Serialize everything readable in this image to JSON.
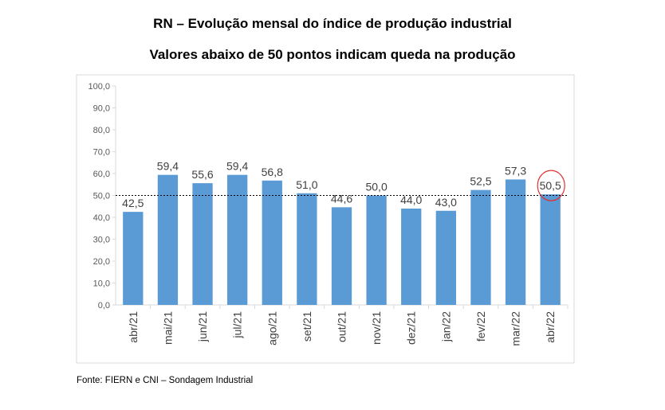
{
  "title": "RN – Evolução mensal do índice de produção industrial",
  "subtitle": "Valores abaixo de 50 pontos indicam queda na produção",
  "source": "Fonte: FIERN e CNI – Sondagem Industrial",
  "chart_data": {
    "type": "bar",
    "title": "RN – Evolução mensal do índice de produção industrial",
    "subtitle": "Valores abaixo de 50 pontos indicam queda na produção",
    "categories": [
      "abr/21",
      "mai/21",
      "jun/21",
      "jul/21",
      "ago/21",
      "set/21",
      "out/21",
      "nov/21",
      "dez/21",
      "jan/22",
      "fev/22",
      "mar/22",
      "abr/22"
    ],
    "values": [
      42.5,
      59.4,
      55.6,
      59.4,
      56.8,
      51.0,
      44.6,
      50.0,
      44.0,
      43.0,
      52.5,
      57.3,
      50.5
    ],
    "value_labels": [
      "42,5",
      "59,4",
      "55,6",
      "59,4",
      "56,8",
      "51,0",
      "44,6",
      "50,0",
      "44,0",
      "43,0",
      "52,5",
      "57,3",
      "50,5"
    ],
    "ylim": [
      0,
      100
    ],
    "yticks": [
      "0,0",
      "10,0",
      "20,0",
      "30,0",
      "40,0",
      "50,0",
      "60,0",
      "70,0",
      "80,0",
      "90,0",
      "100,0"
    ],
    "reference_line": 50,
    "highlighted_category": "abr/22",
    "grid": false,
    "legend": "none",
    "colors": {
      "bar": "#5b9bd5",
      "reference_line": "#000000",
      "highlight_circle": "#e03030",
      "frame": "#d9d9d9"
    }
  }
}
